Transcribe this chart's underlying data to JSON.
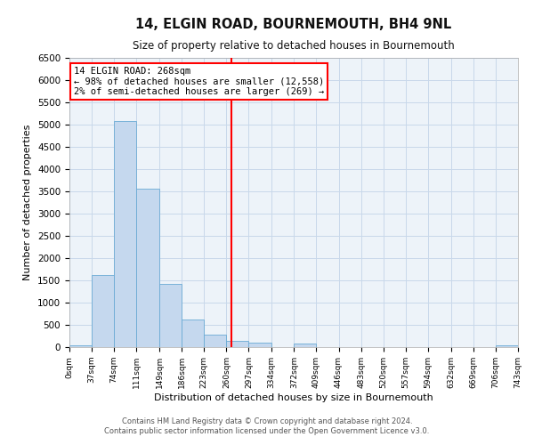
{
  "title": "14, ELGIN ROAD, BOURNEMOUTH, BH4 9NL",
  "subtitle": "Size of property relative to detached houses in Bournemouth",
  "xlabel": "Distribution of detached houses by size in Bournemouth",
  "ylabel": "Number of detached properties",
  "bar_color": "#c5d8ee",
  "bar_edge_color": "#6aaad4",
  "background_color": "#ffffff",
  "ax_background": "#edf3f9",
  "grid_color": "#c8d8ea",
  "vline_x": 268,
  "vline_color": "red",
  "bin_edges": [
    0,
    37,
    74,
    111,
    149,
    186,
    223,
    260,
    297,
    334,
    372,
    409,
    446,
    483,
    520,
    557,
    594,
    632,
    669,
    706,
    743
  ],
  "bar_heights": [
    50,
    1620,
    5080,
    3570,
    1420,
    620,
    290,
    150,
    110,
    0,
    80,
    0,
    0,
    0,
    0,
    0,
    0,
    0,
    0,
    50
  ],
  "ylim": [
    0,
    6500
  ],
  "yticks": [
    0,
    500,
    1000,
    1500,
    2000,
    2500,
    3000,
    3500,
    4000,
    4500,
    5000,
    5500,
    6000,
    6500
  ],
  "xtick_labels": [
    "0sqm",
    "37sqm",
    "74sqm",
    "111sqm",
    "149sqm",
    "186sqm",
    "223sqm",
    "260sqm",
    "297sqm",
    "334sqm",
    "372sqm",
    "409sqm",
    "446sqm",
    "483sqm",
    "520sqm",
    "557sqm",
    "594sqm",
    "632sqm",
    "669sqm",
    "706sqm",
    "743sqm"
  ],
  "annotation_title": "14 ELGIN ROAD: 268sqm",
  "annotation_line1": "← 98% of detached houses are smaller (12,558)",
  "annotation_line2": "2% of semi-detached houses are larger (269) →",
  "footer_line1": "Contains HM Land Registry data © Crown copyright and database right 2024.",
  "footer_line2": "Contains public sector information licensed under the Open Government Licence v3.0."
}
